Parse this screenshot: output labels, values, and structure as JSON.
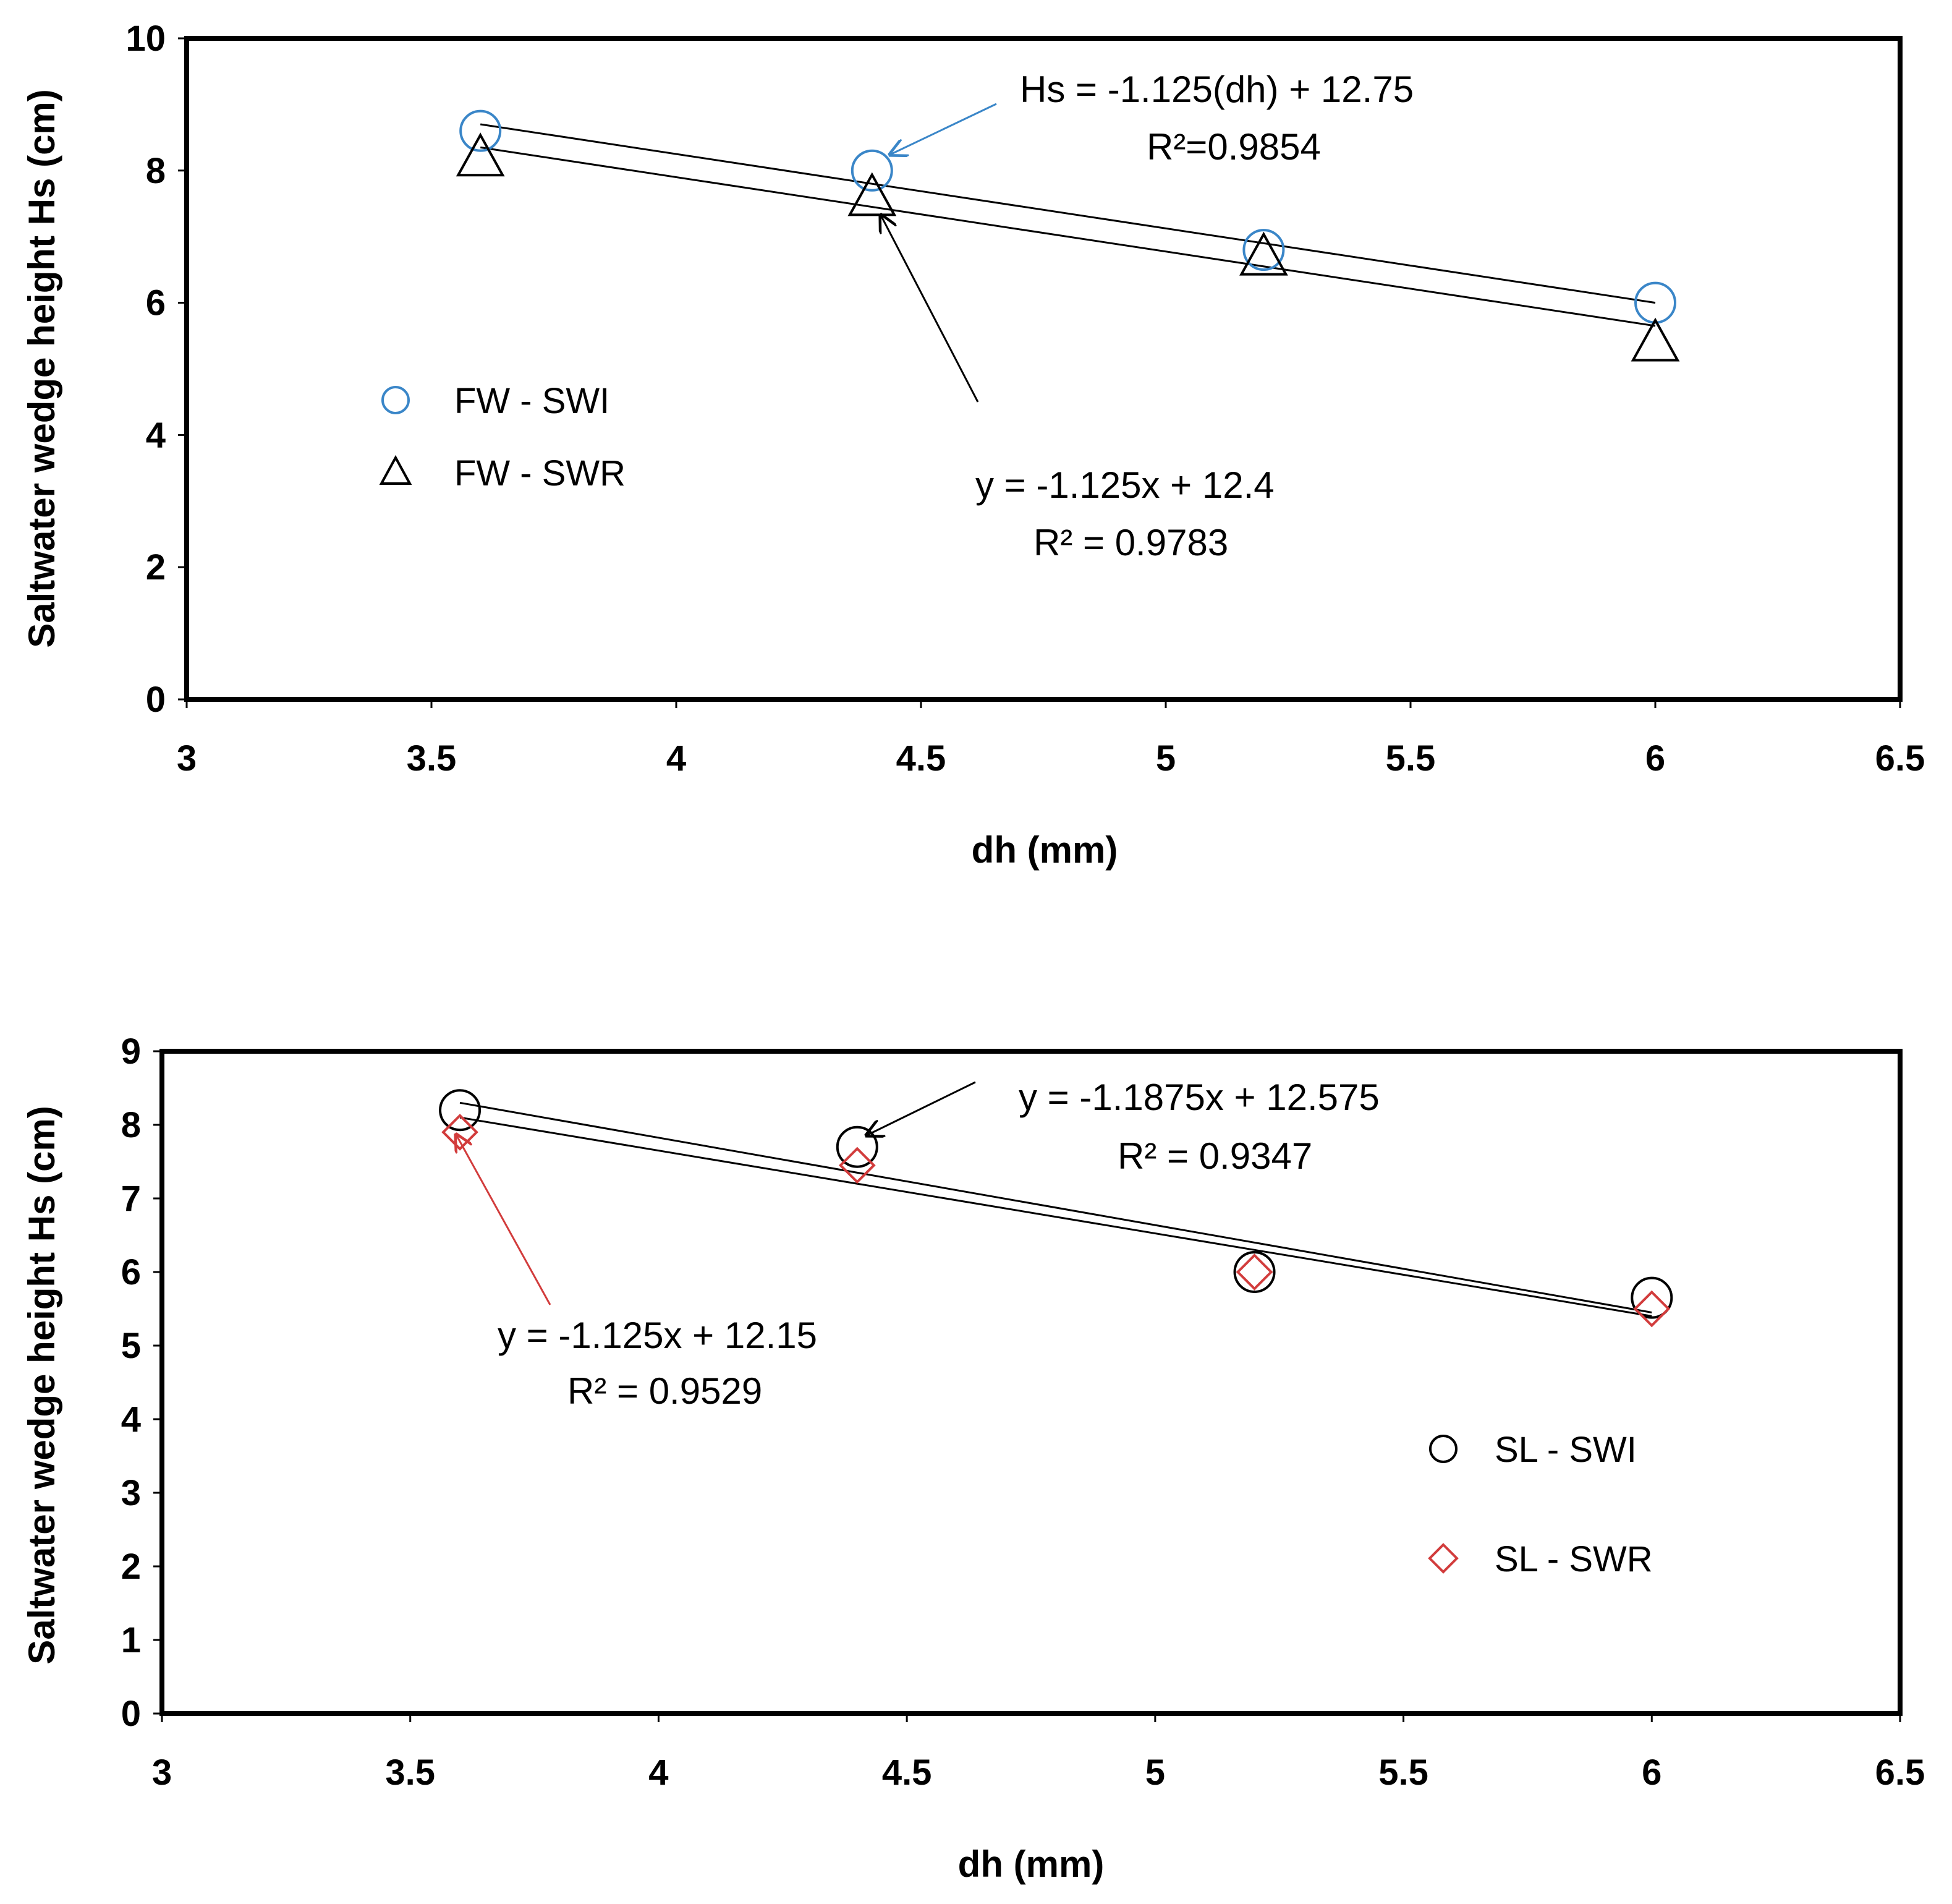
{
  "chart_data": [
    {
      "type": "scatter",
      "xlabel": "dh (mm)",
      "ylabel": "Saltwater  wedge height Hs (cm)",
      "xlim": [
        3,
        6.5
      ],
      "ylim": [
        0,
        10
      ],
      "xticks": [
        3,
        3.5,
        4,
        4.5,
        5,
        5.5,
        6,
        6.5
      ],
      "yticks": [
        0,
        2,
        4,
        6,
        8,
        10
      ],
      "xtick_labels": [
        "3",
        "3.5",
        "4",
        "4.5",
        "5",
        "5.5",
        "6",
        "6.5"
      ],
      "ytick_labels": [
        "0",
        "2",
        "4",
        "6",
        "8",
        "10"
      ],
      "series": [
        {
          "name": "FW - SWI",
          "marker": "circle",
          "color": "#3a86c8",
          "x": [
            3.6,
            4.4,
            5.2,
            6.0
          ],
          "y": [
            8.6,
            8.0,
            6.8,
            6.0
          ],
          "trend": {
            "slope": -1.125,
            "intercept": 12.75
          }
        },
        {
          "name": "FW - SWR",
          "marker": "triangle",
          "color": "#000000",
          "x": [
            3.6,
            4.4,
            5.2,
            6.0
          ],
          "y": [
            8.2,
            7.6,
            6.7,
            5.4
          ],
          "trend": {
            "slope": -1.125,
            "intercept": 12.4
          }
        }
      ],
      "annotations": [
        {
          "equation": "Hs = -1.125(dh) + 12.75",
          "r2": "R²=0.9854",
          "arrow_color": "#3a86c8"
        },
        {
          "equation": "y = -1.125x + 12.4",
          "r2": "R² = 0.9783",
          "arrow_color": "#000000"
        }
      ],
      "legend_position": "left-middle"
    },
    {
      "type": "scatter",
      "xlabel": "dh (mm)",
      "ylabel": "Saltwater  wedge height Hs (cm)",
      "xlim": [
        3,
        6.5
      ],
      "ylim": [
        0,
        9
      ],
      "xticks": [
        3,
        3.5,
        4,
        4.5,
        5,
        5.5,
        6,
        6.5
      ],
      "yticks": [
        0,
        1,
        2,
        3,
        4,
        5,
        6,
        7,
        8,
        9
      ],
      "xtick_labels": [
        "3",
        "3.5",
        "4",
        "4.5",
        "5",
        "5.5",
        "6",
        "6.5"
      ],
      "ytick_labels": [
        "0",
        "1",
        "2",
        "3",
        "4",
        "5",
        "6",
        "7",
        "8",
        "9"
      ],
      "series": [
        {
          "name": "SL - SWI",
          "marker": "circle",
          "color": "#000000",
          "x": [
            3.6,
            4.4,
            5.2,
            6.0
          ],
          "y": [
            8.2,
            7.7,
            6.0,
            5.65
          ],
          "trend": {
            "slope": -1.1875,
            "intercept": 12.575
          }
        },
        {
          "name": "SL - SWR",
          "marker": "diamond",
          "color": "#d23c3c",
          "x": [
            3.6,
            4.4,
            5.2,
            6.0
          ],
          "y": [
            7.9,
            7.45,
            6.0,
            5.5
          ],
          "trend": {
            "slope": -1.125,
            "intercept": 12.15
          }
        }
      ],
      "annotations": [
        {
          "equation": "y = -1.1875x + 12.575",
          "r2": "R² = 0.9347",
          "arrow_color": "#000000"
        },
        {
          "equation": "y = -1.125x + 12.15",
          "r2": "R² = 0.9529",
          "arrow_color": "#d23c3c"
        }
      ],
      "legend_position": "right-middle"
    }
  ]
}
